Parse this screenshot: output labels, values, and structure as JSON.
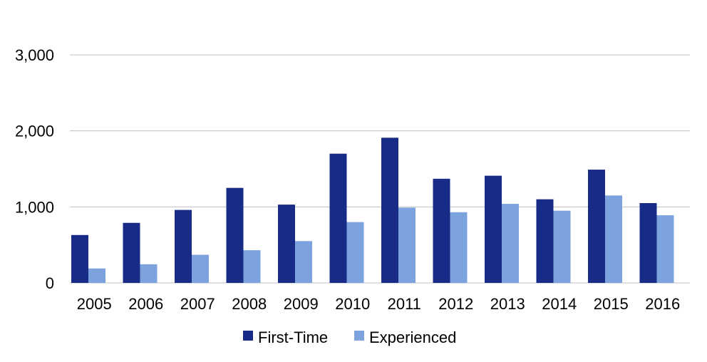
{
  "chart_data": {
    "type": "bar",
    "title": "",
    "xlabel": "",
    "ylabel": "",
    "categories": [
      "2005",
      "2006",
      "2007",
      "2008",
      "2009",
      "2010",
      "2011",
      "2012",
      "2013",
      "2014",
      "2015",
      "2016"
    ],
    "series": [
      {
        "name": "First-Time",
        "color": "#172b87",
        "values": [
          630,
          790,
          960,
          1250,
          1030,
          1700,
          1910,
          1370,
          1410,
          1100,
          1490,
          1050
        ]
      },
      {
        "name": "Experienced",
        "color": "#7da3de",
        "values": [
          190,
          245,
          370,
          430,
          550,
          800,
          990,
          930,
          1040,
          950,
          1150,
          890
        ]
      }
    ],
    "ylim": [
      0,
      3000
    ],
    "yticks": [
      0,
      1000,
      2000,
      3000
    ],
    "ytick_labels": [
      "0",
      "1,000",
      "2,000",
      "3,000"
    ],
    "grid": true,
    "legend_position": "bottom"
  }
}
